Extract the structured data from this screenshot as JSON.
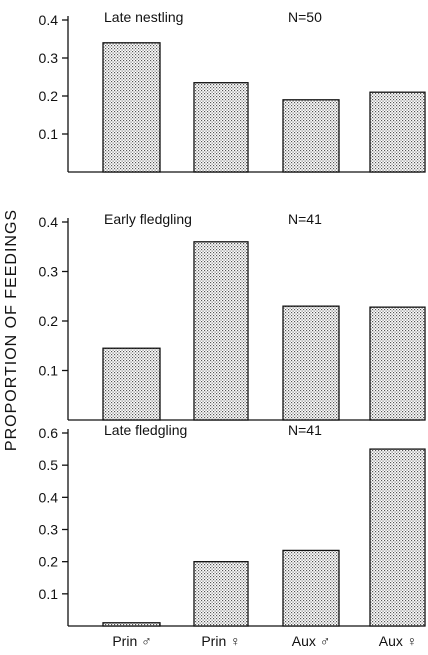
{
  "ylabel": "PROPORTION OF FEEDINGS",
  "chart_data": [
    {
      "type": "bar",
      "title": "Late nestling",
      "n_label": "N=50",
      "categories": [
        "Prin ♂",
        "Prin ♀",
        "Aux ♂",
        "Aux ♀"
      ],
      "values": [
        0.34,
        0.235,
        0.19,
        0.21
      ],
      "ylim": [
        0,
        0.4
      ],
      "yticks": [
        0.1,
        0.2,
        0.3,
        0.4
      ],
      "ytick_labels": [
        "0.1",
        "0.2",
        "0.3",
        "0.4"
      ],
      "show_categories": false
    },
    {
      "type": "bar",
      "title": "Early fledgling",
      "n_label": "N=41",
      "categories": [
        "Prin ♂",
        "Prin ♀",
        "Aux ♂",
        "Aux ♀"
      ],
      "values": [
        0.145,
        0.36,
        0.23,
        0.228
      ],
      "ylim": [
        0,
        0.4
      ],
      "yticks": [
        0.1,
        0.2,
        0.3,
        0.4
      ],
      "ytick_labels": [
        "0.1",
        "0.2",
        "0.3",
        "0.4"
      ],
      "show_categories": false
    },
    {
      "type": "bar",
      "title": "Late fledgling",
      "n_label": "N=41",
      "categories": [
        "Prin ♂",
        "Prin ♀",
        "Aux ♂",
        "Aux ♀"
      ],
      "values": [
        0.01,
        0.2,
        0.235,
        0.55
      ],
      "ylim": [
        0,
        0.6
      ],
      "yticks": [
        0.1,
        0.2,
        0.3,
        0.4,
        0.5,
        0.6
      ],
      "ytick_labels": [
        "0.1",
        "0.2",
        "0.3",
        "0.4",
        "0.5",
        "0.6"
      ],
      "show_categories": true
    }
  ]
}
